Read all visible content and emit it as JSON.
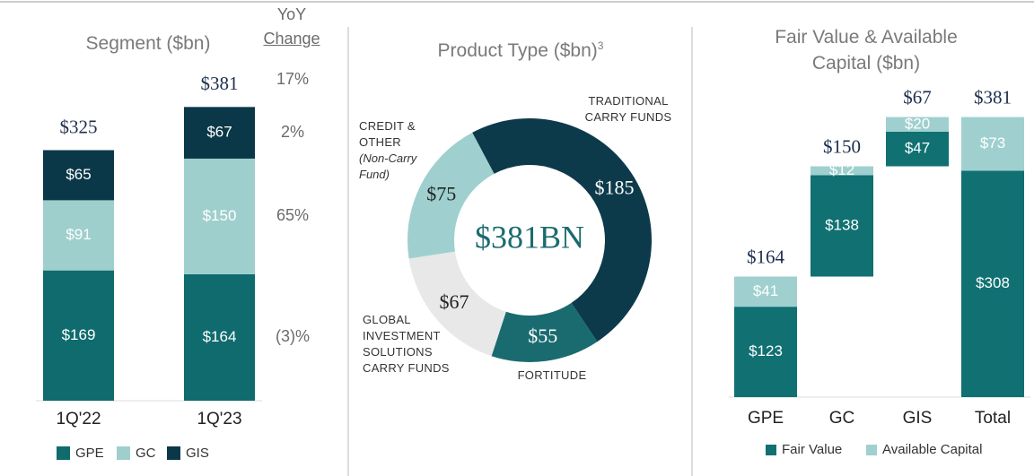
{
  "chart_data": [
    {
      "type": "bar",
      "title": "Segment ($bn)",
      "categories": [
        "1Q'22",
        "1Q'23"
      ],
      "series": [
        {
          "name": "GPE",
          "color": "#0f6b6d",
          "values": [
            169,
            164
          ],
          "value_labels": [
            "$169",
            "$164"
          ]
        },
        {
          "name": "GC",
          "color": "#9fcfcd",
          "values": [
            91,
            150
          ],
          "value_labels": [
            "$91",
            "$150"
          ]
        },
        {
          "name": "GIS",
          "color": "#0b3848",
          "values": [
            65,
            67
          ],
          "value_labels": [
            "$65",
            "$67"
          ]
        }
      ],
      "totals": [
        325,
        381
      ],
      "total_labels": [
        "$325",
        "$381"
      ],
      "yoy_title": [
        "YoY",
        "Change"
      ],
      "yoy_labels": [
        "17%",
        "2%",
        "65%",
        "(3)%"
      ]
    },
    {
      "type": "donut",
      "title": "Product Type ($bn)",
      "title_note": "3",
      "categories": [
        "TRADITIONAL CARRY FUNDS",
        "FORTITUDE",
        "GLOBAL INVESTMENT SOLUTIONS CARRY FUNDS",
        "CREDIT & OTHER"
      ],
      "credit_note": "(Non-Carry Fund)",
      "values": [
        185,
        55,
        67,
        75
      ],
      "value_labels": [
        "$185",
        "$55",
        "$67",
        "$75"
      ],
      "colors": [
        "#0d3a4b",
        "#1a6b70",
        "#e8e8e8",
        "#9fd0cf"
      ],
      "center_label": "$381BN"
    },
    {
      "type": "waterfall",
      "title": "Fair Value & Available Capital ($bn)",
      "categories": [
        "GPE",
        "GC",
        "GIS",
        "Total"
      ],
      "series": [
        {
          "name": "Fair Value",
          "color": "#107072",
          "values": [
            123,
            138,
            47,
            308
          ],
          "value_labels": [
            "$123",
            "$138",
            "$47",
            "$308"
          ]
        },
        {
          "name": "Available Capital",
          "color": "#9fd0cf",
          "values": [
            41,
            12,
            20,
            73
          ],
          "value_labels": [
            "$41",
            "$12",
            "$20",
            "$73"
          ]
        }
      ],
      "totals": [
        164,
        150,
        67,
        381
      ],
      "total_labels": [
        "$164",
        "$150",
        "$67",
        "$381"
      ]
    }
  ]
}
